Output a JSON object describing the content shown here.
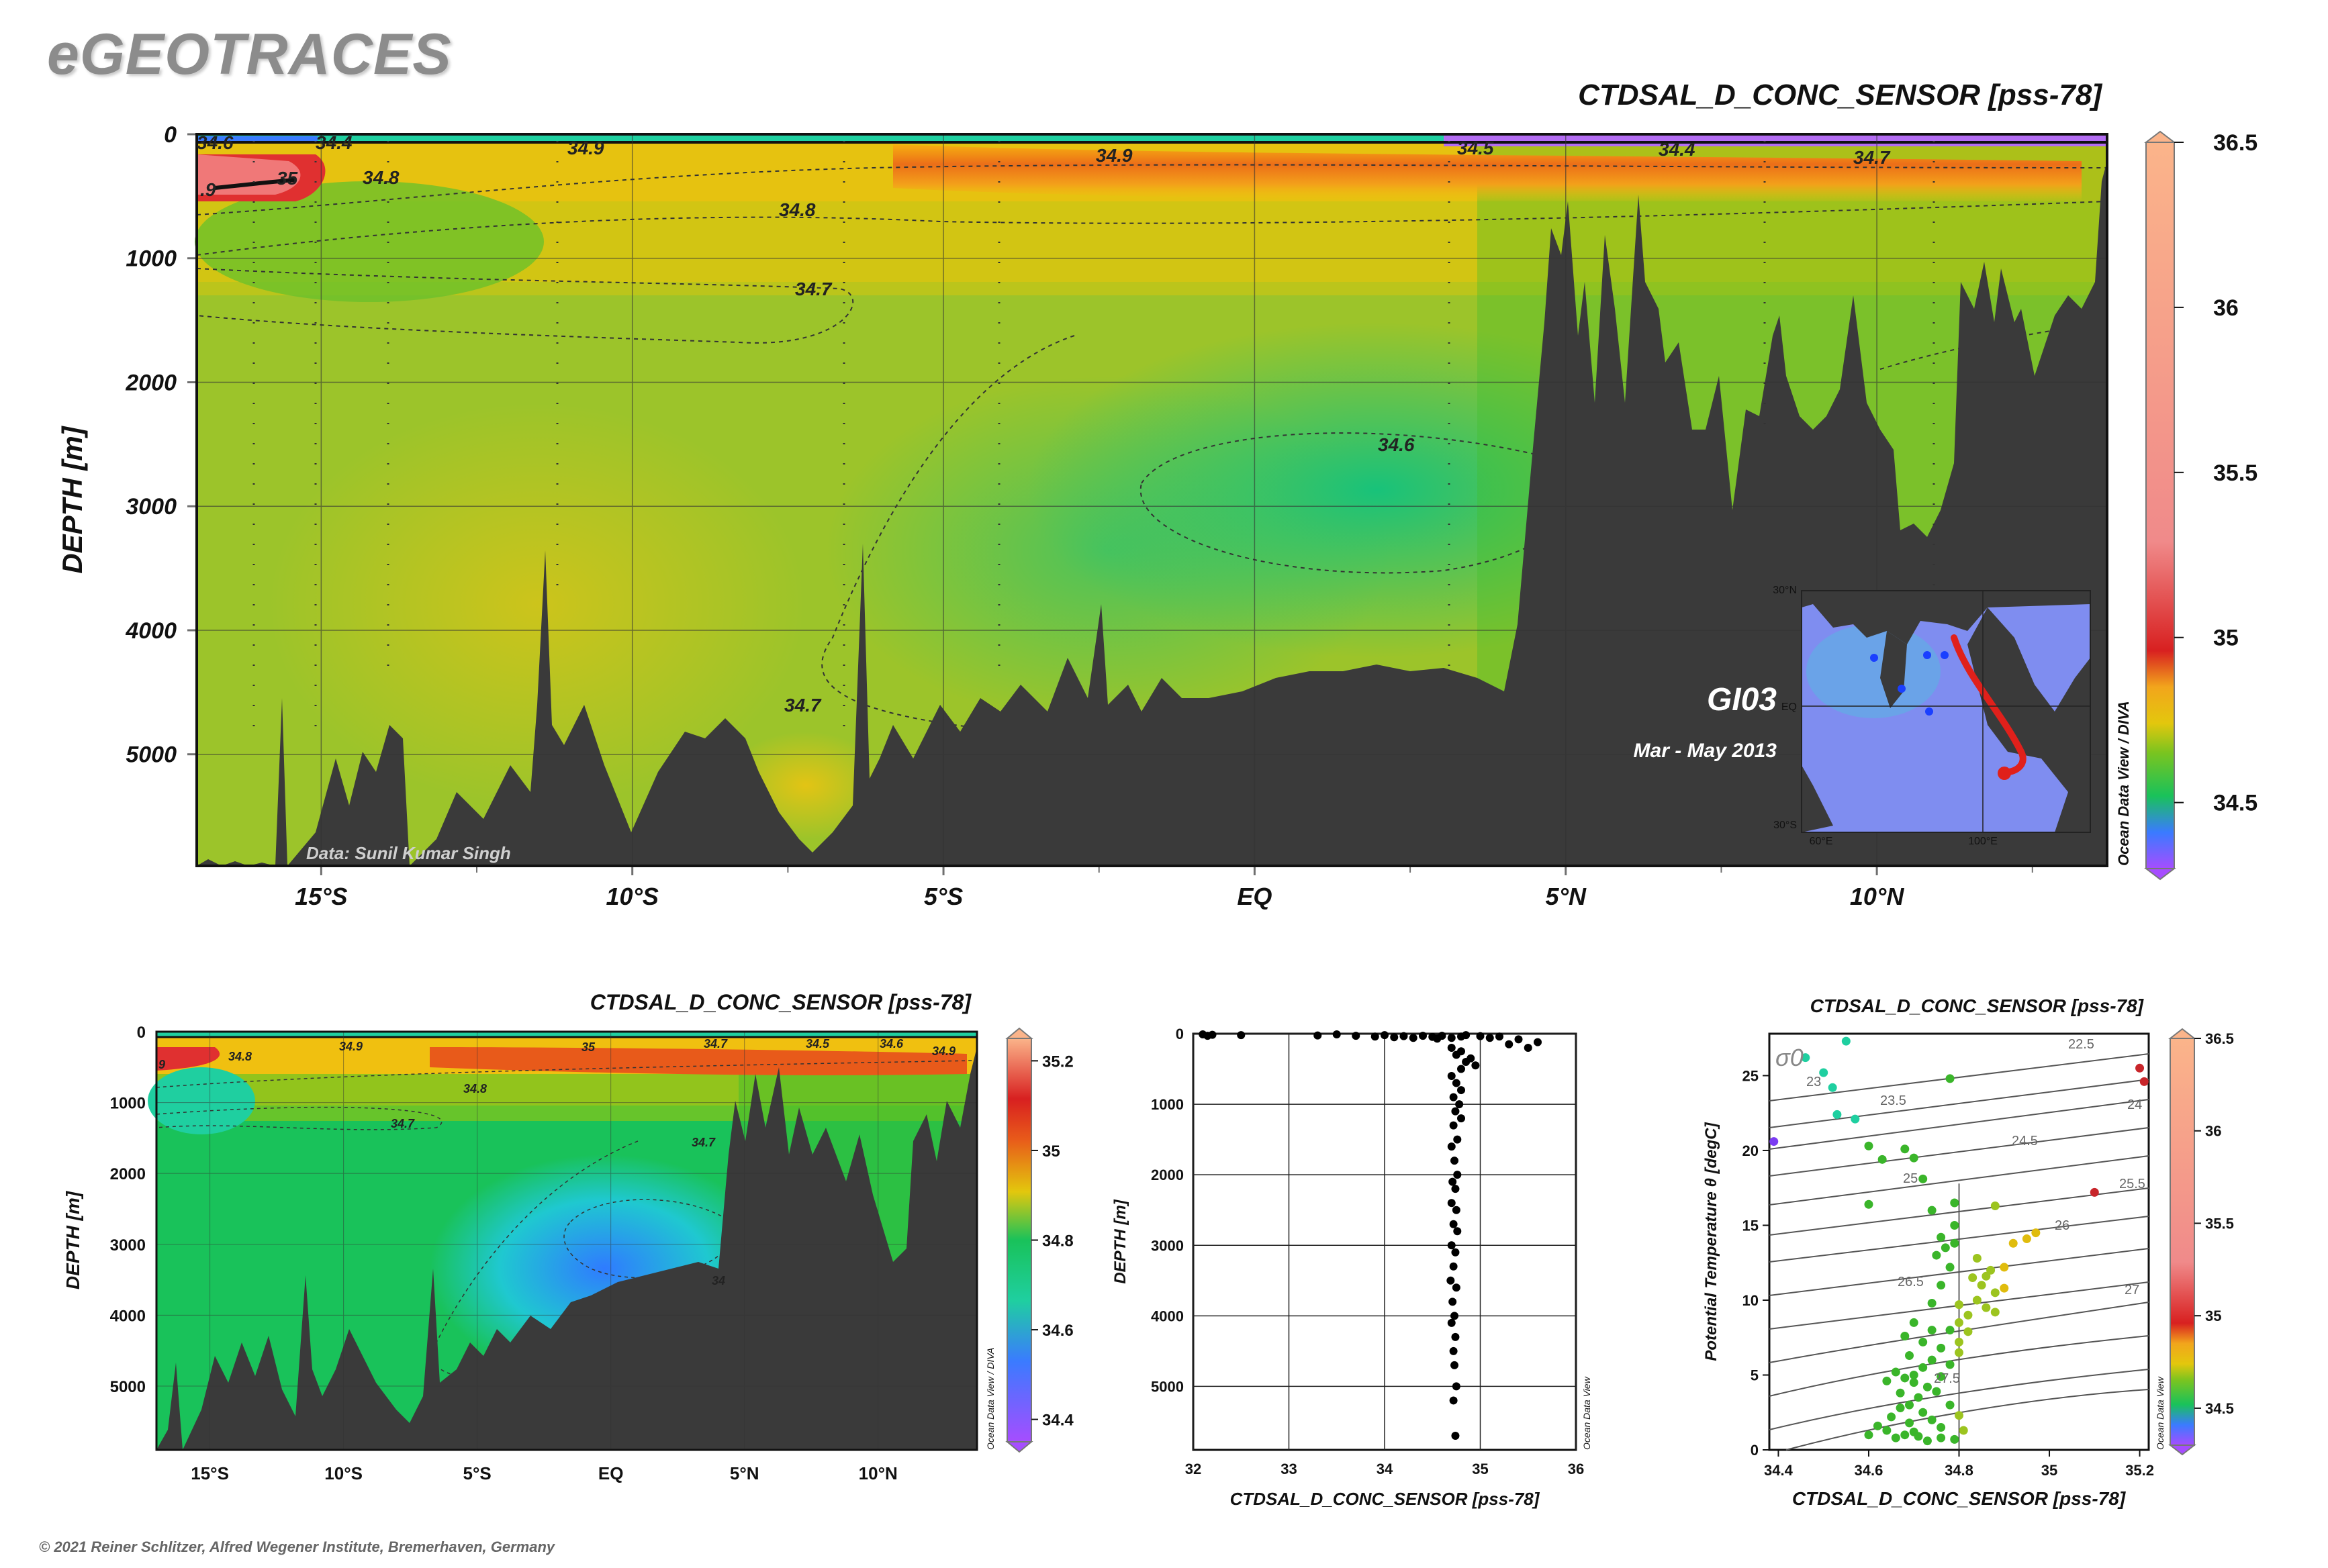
{
  "brand": "eGEOTRACES",
  "credit": "© 2021 Reiner Schlitzer, Alfred Wegener Institute, Bremerhaven, Germany",
  "colors": {
    "land": "#3a3a3a",
    "accent_track": "#e0201b",
    "ramp": [
      "#a64dff",
      "#3a7bff",
      "#1fcfa0",
      "#19c25a",
      "#7bc41f",
      "#d7c10d",
      "#f2a51c",
      "#e85a1a",
      "#d82020",
      "#f08a8a",
      "#fbb48a"
    ]
  },
  "chart_data": [
    {
      "type": "section",
      "title": "CTDSAL_D_CONC_SENSOR [pss-78]",
      "ylabel": "DEPTH [m]",
      "xlabel": "",
      "x_ticks": [
        "15°S",
        "10°S",
        "5°S",
        "EQ",
        "5°N",
        "10°N"
      ],
      "x_tick_values": [
        -15,
        -10,
        -5,
        0,
        5,
        10
      ],
      "xlim": [
        -17,
        13.7
      ],
      "y_ticks": [
        "0",
        "1000",
        "2000",
        "3000",
        "4000",
        "5000"
      ],
      "y_tick_values": [
        0,
        1000,
        2000,
        3000,
        4000,
        5000
      ],
      "ylim": [
        0,
        5900
      ],
      "colorbar": {
        "ticks": [
          "34.5",
          "35",
          "35.5",
          "36",
          "36.5"
        ],
        "range": [
          34.3,
          36.5
        ]
      },
      "contour_labels": [
        "34.6",
        "34.4",
        "34.9",
        "35",
        "34.8",
        "34.9",
        "34.5",
        "34.4",
        "34.7",
        "34.8",
        "34.7",
        "34.6",
        "34.7",
        ".9"
      ],
      "annotations": [
        "GI03",
        "Mar - May 2013",
        "Data: Sunil Kumar Singh",
        "Ocean Data View / DIVA"
      ],
      "inset_map": {
        "lat_ticks": [
          "30°N",
          "EQ",
          "30°S"
        ],
        "lon_ticks": [
          "60°E",
          "100°E"
        ]
      }
    },
    {
      "type": "section",
      "title": "CTDSAL_D_CONC_SENSOR [pss-78]",
      "ylabel": "DEPTH [m]",
      "xlabel": "",
      "x_ticks": [
        "15°S",
        "10°S",
        "5°S",
        "EQ",
        "5°N",
        "10°N"
      ],
      "y_ticks": [
        "0",
        "1000",
        "2000",
        "3000",
        "4000",
        "5000"
      ],
      "colorbar": {
        "ticks": [
          "34.4",
          "34.6",
          "34.8",
          "35",
          "35.2"
        ],
        "range": [
          34.35,
          35.25
        ]
      },
      "contour_labels": [
        "9",
        "34.8",
        "34.9",
        "35",
        "34.7",
        "34.5",
        "34.6",
        "34.9",
        "34.8",
        "34.7",
        "34.7",
        "34"
      ],
      "annotations": [
        "Ocean Data View / DIVA"
      ]
    },
    {
      "type": "scatter",
      "title": "",
      "xlabel": "CTDSAL_D_CONC_SENSOR [pss-78]",
      "ylabel": "DEPTH [m]",
      "x_ticks": [
        "32",
        "33",
        "34",
        "35",
        "36"
      ],
      "xlim": [
        32,
        36
      ],
      "y_ticks": [
        "0",
        "1000",
        "2000",
        "3000",
        "4000",
        "5000"
      ],
      "ylim": [
        0,
        5900
      ],
      "annotations": [
        "Ocean Data View"
      ],
      "points": [
        [
          32.1,
          10
        ],
        [
          32.2,
          15
        ],
        [
          32.5,
          20
        ],
        [
          32.15,
          30
        ],
        [
          33.3,
          25
        ],
        [
          33.5,
          10
        ],
        [
          33.7,
          30
        ],
        [
          33.9,
          40
        ],
        [
          34.0,
          20
        ],
        [
          34.1,
          50
        ],
        [
          34.2,
          35
        ],
        [
          34.3,
          60
        ],
        [
          34.4,
          30
        ],
        [
          34.5,
          45
        ],
        [
          34.55,
          70
        ],
        [
          34.6,
          30
        ],
        [
          34.7,
          60
        ],
        [
          34.8,
          40
        ],
        [
          34.85,
          20
        ],
        [
          35.0,
          35
        ],
        [
          35.1,
          60
        ],
        [
          35.2,
          40
        ],
        [
          35.3,
          150
        ],
        [
          35.5,
          200
        ],
        [
          35.6,
          120
        ],
        [
          35.4,
          80
        ],
        [
          34.7,
          200
        ],
        [
          34.75,
          300
        ],
        [
          34.8,
          250
        ],
        [
          34.85,
          400
        ],
        [
          34.9,
          350
        ],
        [
          34.95,
          450
        ],
        [
          34.8,
          500
        ],
        [
          34.7,
          600
        ],
        [
          34.75,
          700
        ],
        [
          34.8,
          800
        ],
        [
          34.72,
          900
        ],
        [
          34.78,
          1000
        ],
        [
          34.74,
          1100
        ],
        [
          34.8,
          1200
        ],
        [
          34.72,
          1300
        ],
        [
          34.76,
          1500
        ],
        [
          34.7,
          1600
        ],
        [
          34.73,
          1800
        ],
        [
          34.76,
          2000
        ],
        [
          34.71,
          2100
        ],
        [
          34.74,
          2200
        ],
        [
          34.7,
          2400
        ],
        [
          34.75,
          2500
        ],
        [
          34.72,
          2700
        ],
        [
          34.76,
          2800
        ],
        [
          34.7,
          3000
        ],
        [
          34.74,
          3100
        ],
        [
          34.72,
          3300
        ],
        [
          34.69,
          3500
        ],
        [
          34.75,
          3600
        ],
        [
          34.71,
          3800
        ],
        [
          34.73,
          4000
        ],
        [
          34.7,
          4100
        ],
        [
          34.74,
          4300
        ],
        [
          34.72,
          4500
        ],
        [
          34.73,
          4700
        ],
        [
          34.75,
          5000
        ],
        [
          34.72,
          5200
        ],
        [
          34.74,
          5700
        ]
      ]
    },
    {
      "type": "scatter",
      "title": "CTDSAL_D_CONC_SENSOR [pss-78]",
      "xlabel": "CTDSAL_D_CONC_SENSOR [pss-78]",
      "ylabel": "Potential Temperature θ [degC]",
      "x_ticks": [
        "34.4",
        "34.6",
        "34.8",
        "35",
        "35.2"
      ],
      "xlim": [
        34.38,
        35.22
      ],
      "y_ticks": [
        "0",
        "5",
        "10",
        "15",
        "20",
        "25"
      ],
      "ylim": [
        0,
        27.8
      ],
      "isopycnal_labels": [
        "23",
        "23.5",
        "24",
        "24.5",
        "25",
        "25.5",
        "26",
        "26.5",
        "27",
        "27.5",
        "22.5"
      ],
      "sigma_label": "σ0",
      "colorbar": {
        "ticks": [
          "34.5",
          "35",
          "35.5",
          "36",
          "36.5"
        ],
        "range": [
          34.3,
          36.5
        ]
      },
      "annotations": [
        "Ocean Data View"
      ],
      "points": [
        [
          34.39,
          20.6
        ],
        [
          34.46,
          26.2
        ],
        [
          34.5,
          25.2
        ],
        [
          34.52,
          24.2
        ],
        [
          34.55,
          27.3
        ],
        [
          34.53,
          22.4
        ],
        [
          34.57,
          22.1
        ],
        [
          34.6,
          20.3
        ],
        [
          34.63,
          19.4
        ],
        [
          34.68,
          20.1
        ],
        [
          34.7,
          19.5
        ],
        [
          34.72,
          18.1
        ],
        [
          34.74,
          16.0
        ],
        [
          34.78,
          24.8
        ],
        [
          34.79,
          16.5
        ],
        [
          34.88,
          16.3
        ],
        [
          35.1,
          17.2
        ],
        [
          35.2,
          25.5
        ],
        [
          35.21,
          24.6
        ],
        [
          34.6,
          16.4
        ],
        [
          34.75,
          13.0
        ],
        [
          34.77,
          13.5
        ],
        [
          34.79,
          13.8
        ],
        [
          34.83,
          11.5
        ],
        [
          34.85,
          11.0
        ],
        [
          34.87,
          12.0
        ],
        [
          34.9,
          12.2
        ],
        [
          34.92,
          13.8
        ],
        [
          34.95,
          14.1
        ],
        [
          34.97,
          14.5
        ],
        [
          34.84,
          10.0
        ],
        [
          34.86,
          9.5
        ],
        [
          34.88,
          10.5
        ],
        [
          34.82,
          9.0
        ],
        [
          34.8,
          8.5
        ],
        [
          34.78,
          8.0
        ],
        [
          34.8,
          7.2
        ],
        [
          34.76,
          6.8
        ],
        [
          34.74,
          6.0
        ],
        [
          34.72,
          5.5
        ],
        [
          34.7,
          5.0
        ],
        [
          34.68,
          4.8
        ],
        [
          34.7,
          4.5
        ],
        [
          34.73,
          4.2
        ],
        [
          34.75,
          3.9
        ],
        [
          34.71,
          3.5
        ],
        [
          34.69,
          3.0
        ],
        [
          34.72,
          2.5
        ],
        [
          34.74,
          2.0
        ],
        [
          34.76,
          1.5
        ],
        [
          34.7,
          1.2
        ],
        [
          34.68,
          1.0
        ],
        [
          34.66,
          0.8
        ],
        [
          34.64,
          1.3
        ],
        [
          34.62,
          1.6
        ],
        [
          34.6,
          1.0
        ],
        [
          34.65,
          2.2
        ],
        [
          34.67,
          3.8
        ],
        [
          34.69,
          6.3
        ],
        [
          34.66,
          5.2
        ],
        [
          34.64,
          4.6
        ],
        [
          34.74,
          9.8
        ],
        [
          34.76,
          11.0
        ],
        [
          34.78,
          12.2
        ],
        [
          34.8,
          9.7
        ],
        [
          34.82,
          7.9
        ],
        [
          34.8,
          6.5
        ],
        [
          34.78,
          5.7
        ],
        [
          34.76,
          4.9
        ],
        [
          34.78,
          3.0
        ],
        [
          34.8,
          2.3
        ],
        [
          34.81,
          1.3
        ],
        [
          34.79,
          0.7
        ],
        [
          34.76,
          0.8
        ],
        [
          34.73,
          0.6
        ],
        [
          34.71,
          0.9
        ],
        [
          34.69,
          1.8
        ],
        [
          34.67,
          2.8
        ],
        [
          34.72,
          7.2
        ],
        [
          34.74,
          8.0
        ],
        [
          34.7,
          8.5
        ],
        [
          34.68,
          7.6
        ],
        [
          34.84,
          12.8
        ],
        [
          34.86,
          11.6
        ],
        [
          34.88,
          9.2
        ],
        [
          34.9,
          10.8
        ],
        [
          34.76,
          14.2
        ],
        [
          34.79,
          15.0
        ]
      ]
    }
  ]
}
